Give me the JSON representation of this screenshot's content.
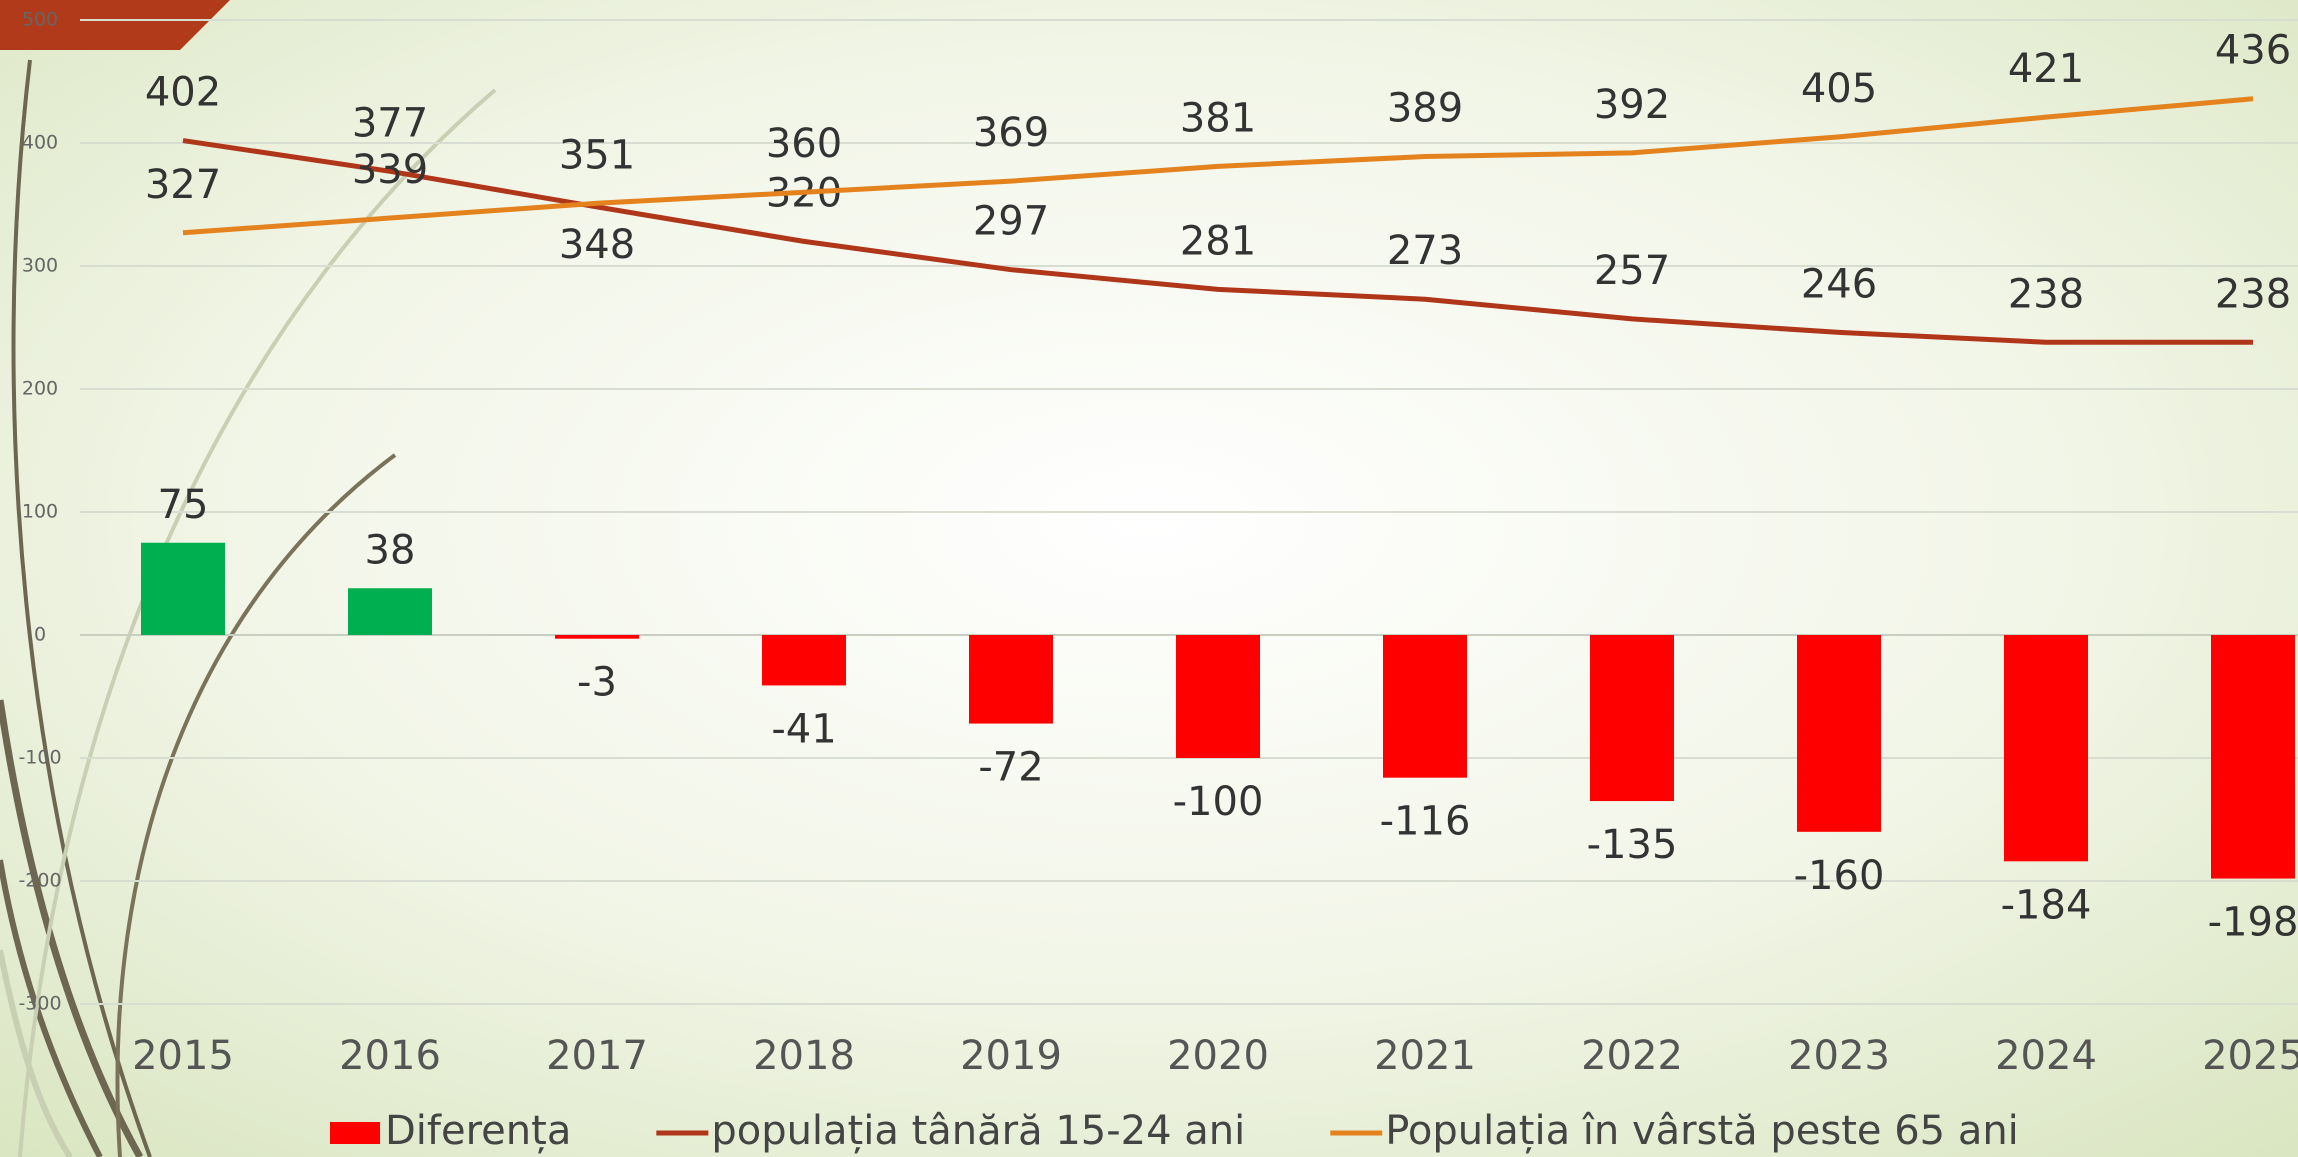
{
  "chart_data": {
    "type": "bar",
    "categories": [
      "2015",
      "2016",
      "2017",
      "2018",
      "2019",
      "2020",
      "2021",
      "2022",
      "2023",
      "2024",
      "2025"
    ],
    "series": [
      {
        "name": "Diferența",
        "type": "bar",
        "color": "#ff0000",
        "colors": [
          "#00b050",
          "#00b050",
          "#ff0000",
          "#ff0000",
          "#ff0000",
          "#ff0000",
          "#ff0000",
          "#ff0000",
          "#ff0000",
          "#ff0000",
          "#ff0000"
        ],
        "values": [
          75,
          38,
          -3,
          -41,
          -72,
          -100,
          -116,
          -135,
          -160,
          -184,
          -198
        ]
      },
      {
        "name": "populația tânără 15-24 ani",
        "type": "line",
        "color": "#b0361a",
        "values": [
          402,
          377,
          348,
          320,
          297,
          281,
          273,
          257,
          246,
          238,
          238
        ]
      },
      {
        "name": "Populația în vârstă peste 65 ani",
        "type": "line",
        "color": "#e4821e",
        "values": [
          327,
          339,
          351,
          360,
          369,
          381,
          389,
          392,
          405,
          421,
          436
        ]
      }
    ],
    "ylim": [
      -300,
      500
    ],
    "yticks": [
      -300,
      -200,
      -100,
      0,
      100,
      200,
      300,
      400,
      500
    ],
    "grid": true,
    "legend": "bottom"
  }
}
